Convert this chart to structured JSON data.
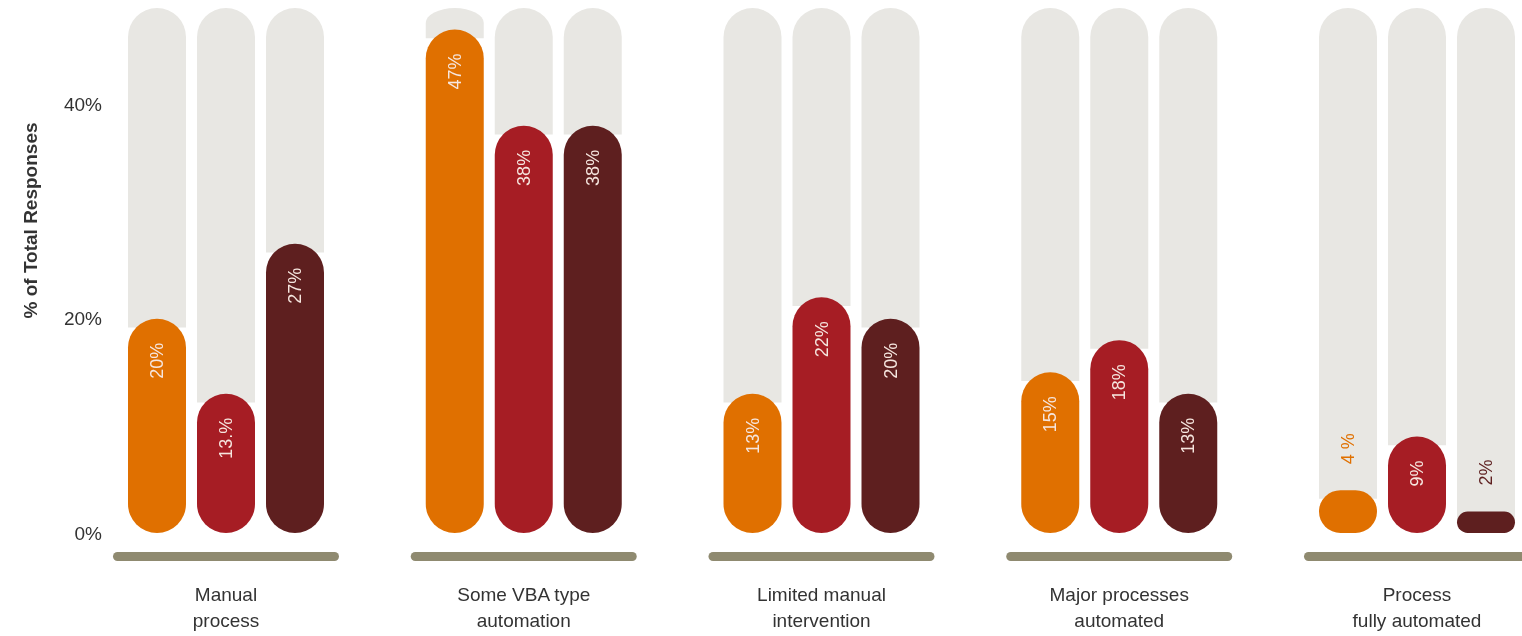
{
  "chart_data": {
    "type": "bar",
    "ylabel": "% of Total Responses",
    "categories": [
      "Manual\nprocess",
      "Some VBA type\nautomation",
      "Limited manual\nintervention",
      "Major processes\nautomated",
      "Process\nfully automated"
    ],
    "series": [
      {
        "color": "#e07000",
        "values": [
          20,
          47,
          13,
          15,
          4
        ],
        "value_labels": [
          "20%",
          "47%",
          "13%",
          "15%",
          "4 %"
        ]
      },
      {
        "color": "#a61d24",
        "values": [
          13,
          38,
          22,
          18,
          9
        ],
        "value_labels": [
          "13.%",
          "38%",
          "22%",
          "18%",
          "9%"
        ]
      },
      {
        "color": "#5e1f1f",
        "values": [
          27,
          38,
          20,
          13,
          2
        ],
        "value_labels": [
          "27%",
          "38%",
          "20%",
          "13%",
          "2%"
        ]
      }
    ],
    "ylim": [
      0,
      49
    ],
    "yticks": [
      {
        "value": 0,
        "label": "0%"
      },
      {
        "value": 20,
        "label": "20%"
      },
      {
        "value": 40,
        "label": "40%"
      }
    ]
  }
}
